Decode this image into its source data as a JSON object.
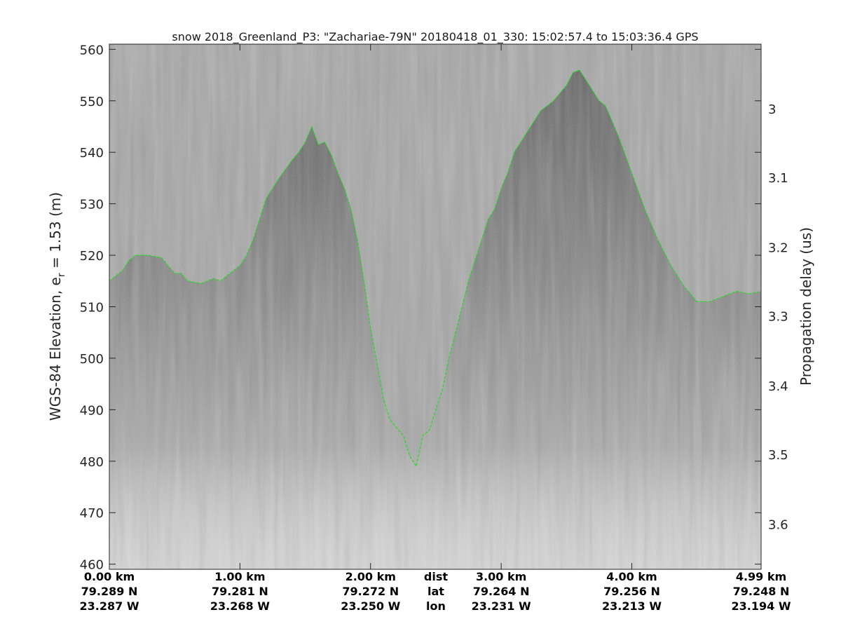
{
  "chart_data": {
    "type": "line",
    "title": "snow 2018_Greenland_P3: \"Zachariae-79N\"  20180418_01_330: 15:02:57.4 to 15:03:36.4 GPS",
    "ylabel_main": "WGS-84 Elevation, e",
    "ylabel_sub": "r",
    "ylabel_tail": " = 1.53 (m)",
    "y2label": "Propagation delay (us)",
    "xlim": [
      0,
      4.99
    ],
    "ylim": [
      459,
      561
    ],
    "y_ticks": [
      460,
      470,
      480,
      490,
      500,
      510,
      520,
      530,
      540,
      550,
      560
    ],
    "y2_ticks": [
      {
        "label": "3",
        "elev": 548.5
      },
      {
        "label": "3.1",
        "elev": 535.1
      },
      {
        "label": "3.2",
        "elev": 521.6
      },
      {
        "label": "3.3",
        "elev": 508.2
      },
      {
        "label": "3.4",
        "elev": 494.7
      },
      {
        "label": "3.5",
        "elev": 481.3
      },
      {
        "label": "3.6",
        "elev": 467.8
      }
    ],
    "x_ticks": [
      {
        "x": 0.0,
        "dist": "0.00 km",
        "lat": "79.289 N",
        "lon": "23.287 W"
      },
      {
        "x": 1.0,
        "dist": "1.00 km",
        "lat": "79.281 N",
        "lon": "23.268 W"
      },
      {
        "x": 2.0,
        "dist": "2.00 km",
        "lat": "79.272 N",
        "lon": "23.250 W"
      },
      {
        "x": 3.0,
        "dist": "3.00 km",
        "lat": "79.264 N",
        "lon": "23.231 W"
      },
      {
        "x": 4.0,
        "dist": "4.00 km",
        "lat": "79.256 N",
        "lon": "23.213 W"
      },
      {
        "x": 4.99,
        "dist": "4.99 km",
        "lat": "79.248 N",
        "lon": "23.194 W"
      }
    ],
    "row_labels": {
      "x": 2.5,
      "dist": "dist",
      "lat": "lat",
      "lon": "lon"
    },
    "series": [
      {
        "color": "#22dd22",
        "x": [
          0,
          0.1,
          0.15,
          0.2,
          0.3,
          0.4,
          0.5,
          0.55,
          0.6,
          0.7,
          0.8,
          0.85,
          0.9,
          1.0,
          1.05,
          1.1,
          1.15,
          1.2,
          1.3,
          1.4,
          1.45,
          1.5,
          1.55,
          1.6,
          1.65,
          1.7,
          1.75,
          1.8,
          1.85,
          1.9,
          1.95,
          2.0,
          2.05,
          2.1,
          2.15,
          2.2,
          2.25,
          2.3,
          2.35,
          2.4,
          2.45,
          2.5,
          2.55,
          2.6,
          2.65,
          2.7,
          2.75,
          2.8,
          2.85,
          2.9,
          2.95,
          3.0,
          3.05,
          3.1,
          3.2,
          3.3,
          3.4,
          3.5,
          3.55,
          3.6,
          3.65,
          3.7,
          3.75,
          3.8,
          3.9,
          4.0,
          4.1,
          4.2,
          4.3,
          4.4,
          4.5,
          4.6,
          4.7,
          4.8,
          4.9,
          4.99
        ],
        "y": [
          515,
          517,
          519,
          520,
          520,
          519.5,
          516.5,
          516.5,
          515,
          514.5,
          515.5,
          515,
          516,
          518,
          520,
          523,
          527,
          531,
          535,
          538.5,
          540,
          542,
          545,
          541.5,
          542,
          539.5,
          536,
          533,
          529,
          523,
          515,
          506,
          499,
          492,
          488,
          486.5,
          485,
          481,
          479,
          485,
          486,
          490,
          494,
          500,
          505,
          510,
          515,
          519,
          523,
          527,
          529,
          533,
          536,
          540,
          544,
          548,
          550,
          553,
          555.5,
          556,
          554,
          552,
          550,
          549,
          543,
          536,
          529,
          523,
          518,
          514,
          511,
          511,
          512,
          513,
          512.5,
          513
        ]
      }
    ]
  }
}
